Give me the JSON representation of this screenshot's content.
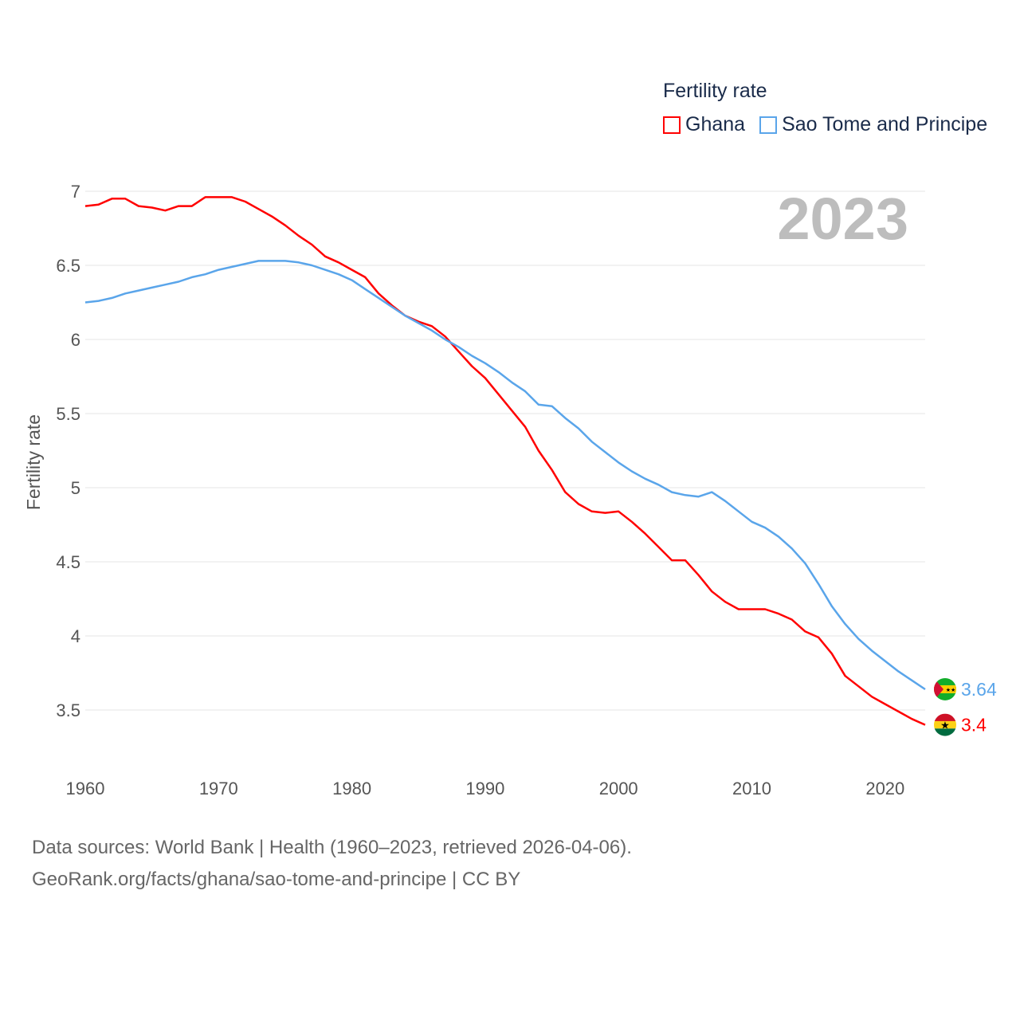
{
  "chart_data": {
    "type": "line",
    "title": "Fertility rate",
    "year_label": "2023",
    "xlabel": "",
    "ylabel": "Fertility rate",
    "xlim": [
      1960,
      2023
    ],
    "ylim": [
      3.5,
      7
    ],
    "x_ticks": [
      "1960",
      "1970",
      "1980",
      "1990",
      "2000",
      "2010",
      "2020"
    ],
    "y_ticks": [
      "3.5",
      "4",
      "4.5",
      "5",
      "5.5",
      "6",
      "6.5",
      "7"
    ],
    "grid": true,
    "legend_placement": "top-right",
    "x": [
      1960,
      1961,
      1962,
      1963,
      1964,
      1965,
      1966,
      1967,
      1968,
      1969,
      1970,
      1971,
      1972,
      1973,
      1974,
      1975,
      1976,
      1977,
      1978,
      1979,
      1980,
      1981,
      1982,
      1983,
      1984,
      1985,
      1986,
      1987,
      1988,
      1989,
      1990,
      1991,
      1992,
      1993,
      1994,
      1995,
      1996,
      1997,
      1998,
      1999,
      2000,
      2001,
      2002,
      2003,
      2004,
      2005,
      2006,
      2007,
      2008,
      2009,
      2010,
      2011,
      2012,
      2013,
      2014,
      2015,
      2016,
      2017,
      2018,
      2019,
      2020,
      2021,
      2022,
      2023
    ],
    "series": [
      {
        "name": "Ghana",
        "color": "#ff0000",
        "end_label": "3.4",
        "values": [
          6.9,
          6.91,
          6.95,
          6.95,
          6.9,
          6.89,
          6.87,
          6.9,
          6.9,
          6.96,
          6.96,
          6.96,
          6.93,
          6.88,
          6.83,
          6.77,
          6.7,
          6.64,
          6.56,
          6.52,
          6.47,
          6.42,
          6.31,
          6.23,
          6.16,
          6.12,
          6.09,
          6.02,
          5.92,
          5.82,
          5.74,
          5.63,
          5.52,
          5.41,
          5.25,
          5.12,
          4.97,
          4.89,
          4.84,
          4.83,
          4.84,
          4.77,
          4.69,
          4.6,
          4.51,
          4.51,
          4.41,
          4.3,
          4.23,
          4.18,
          4.18,
          4.18,
          4.15,
          4.11,
          4.03,
          3.99,
          3.88,
          3.73,
          3.66,
          3.59,
          3.54,
          3.49,
          3.44,
          3.4
        ]
      },
      {
        "name": "Sao Tome and Principe",
        "color": "#5aa5ea",
        "end_label": "3.64",
        "values": [
          6.25,
          6.26,
          6.28,
          6.31,
          6.33,
          6.35,
          6.37,
          6.39,
          6.42,
          6.44,
          6.47,
          6.49,
          6.51,
          6.53,
          6.53,
          6.53,
          6.52,
          6.5,
          6.47,
          6.44,
          6.4,
          6.34,
          6.28,
          6.22,
          6.16,
          6.11,
          6.06,
          6.0,
          5.95,
          5.89,
          5.84,
          5.78,
          5.71,
          5.65,
          5.56,
          5.55,
          5.47,
          5.4,
          5.31,
          5.24,
          5.17,
          5.11,
          5.06,
          5.02,
          4.97,
          4.95,
          4.94,
          4.97,
          4.91,
          4.84,
          4.77,
          4.73,
          4.67,
          4.59,
          4.49,
          4.35,
          4.2,
          4.08,
          3.98,
          3.9,
          3.83,
          3.76,
          3.7,
          3.64
        ]
      }
    ]
  },
  "source": {
    "line1": "Data sources: World Bank | Health (1960–2023, retrieved 2026-04-06).",
    "line2": "GeoRank.org/facts/ghana/sao-tome-and-principe | CC BY"
  }
}
